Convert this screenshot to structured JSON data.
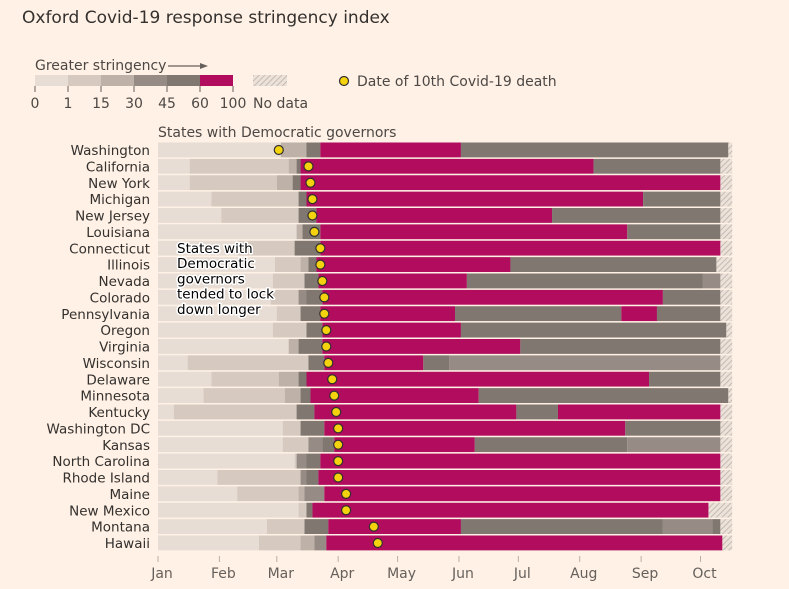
{
  "chart_data": {
    "type": "bar",
    "subtype": "timeline-heatmap",
    "title": "Oxford Covid-19 response stringency index",
    "group_label": "States with Democratic governors",
    "annotation": [
      "States with",
      "Democratic",
      "governors",
      "tended to lock",
      "down longer"
    ],
    "legend": {
      "scale_title": "Greater stringency",
      "breaks": [
        "0",
        "1",
        "15",
        "30",
        "45",
        "60",
        "100"
      ],
      "colors": [
        "#e7ddd4",
        "#d5c9c0",
        "#bdb1a8",
        "#968c85",
        "#7f7770",
        "#b10c5e"
      ],
      "no_data_label": "No data",
      "marker_label": "Date of 10th Covid-19 death",
      "marker_color": "#f5d20e"
    },
    "x_axis": {
      "unit": "day of 2020 (0 = Jan 1)",
      "range": [
        0,
        290
      ],
      "ticks": [
        {
          "label": "Jan",
          "day": 0
        },
        {
          "label": "Feb",
          "day": 31
        },
        {
          "label": "Mar",
          "day": 60
        },
        {
          "label": "Apr",
          "day": 91
        },
        {
          "label": "May",
          "day": 121
        },
        {
          "label": "Jun",
          "day": 152
        },
        {
          "label": "Jul",
          "day": 182
        },
        {
          "label": "Aug",
          "day": 213
        },
        {
          "label": "Sep",
          "day": 244
        },
        {
          "label": "Oct",
          "day": 274
        }
      ]
    },
    "segment_format": "[start_day, end_day, stringency_class 0-5]",
    "rows": [
      {
        "state": "Washington",
        "death": 61,
        "segments": [
          [
            0,
            62,
            0
          ],
          [
            62,
            75,
            2
          ],
          [
            75,
            82,
            4
          ],
          [
            82,
            153,
            5
          ],
          [
            153,
            288,
            4
          ]
        ]
      },
      {
        "state": "California",
        "death": 76,
        "segments": [
          [
            0,
            16,
            0
          ],
          [
            16,
            66,
            1
          ],
          [
            66,
            70,
            2
          ],
          [
            70,
            72,
            4
          ],
          [
            72,
            220,
            5
          ],
          [
            220,
            284,
            4
          ]
        ]
      },
      {
        "state": "New York",
        "death": 77,
        "segments": [
          [
            0,
            16,
            0
          ],
          [
            16,
            60,
            1
          ],
          [
            60,
            68,
            2
          ],
          [
            68,
            72,
            4
          ],
          [
            72,
            284,
            5
          ]
        ]
      },
      {
        "state": "Michigan",
        "death": 78,
        "segments": [
          [
            0,
            27,
            0
          ],
          [
            27,
            71,
            1
          ],
          [
            71,
            75,
            4
          ],
          [
            75,
            245,
            5
          ],
          [
            245,
            284,
            4
          ]
        ]
      },
      {
        "state": "New Jersey",
        "death": 78,
        "segments": [
          [
            0,
            32,
            0
          ],
          [
            32,
            71,
            1
          ],
          [
            71,
            80,
            4
          ],
          [
            80,
            199,
            5
          ],
          [
            199,
            284,
            4
          ]
        ]
      },
      {
        "state": "Louisiana",
        "death": 79,
        "segments": [
          [
            0,
            70,
            0
          ],
          [
            70,
            73,
            2
          ],
          [
            73,
            82,
            4
          ],
          [
            82,
            237,
            5
          ],
          [
            237,
            284,
            4
          ]
        ]
      },
      {
        "state": "Connecticut",
        "death": 82,
        "segments": [
          [
            0,
            40,
            0
          ],
          [
            40,
            69,
            1
          ],
          [
            69,
            82,
            4
          ],
          [
            82,
            284,
            5
          ]
        ]
      },
      {
        "state": "Illinois",
        "death": 82,
        "segments": [
          [
            0,
            59,
            0
          ],
          [
            59,
            72,
            1
          ],
          [
            72,
            76,
            2
          ],
          [
            76,
            80,
            4
          ],
          [
            80,
            178,
            5
          ],
          [
            178,
            282,
            4
          ]
        ]
      },
      {
        "state": "Nevada",
        "death": 83,
        "segments": [
          [
            0,
            58,
            0
          ],
          [
            58,
            74,
            1
          ],
          [
            74,
            81,
            4
          ],
          [
            81,
            156,
            5
          ],
          [
            156,
            275,
            4
          ],
          [
            275,
            284,
            3
          ]
        ]
      },
      {
        "state": "Colorado",
        "death": 84,
        "segments": [
          [
            0,
            57,
            0
          ],
          [
            57,
            71,
            1
          ],
          [
            71,
            75,
            3
          ],
          [
            75,
            83,
            4
          ],
          [
            83,
            255,
            5
          ],
          [
            255,
            284,
            4
          ]
        ]
      },
      {
        "state": "Pennsylvania",
        "death": 84,
        "segments": [
          [
            0,
            60,
            0
          ],
          [
            60,
            72,
            1
          ],
          [
            72,
            82,
            4
          ],
          [
            82,
            150,
            5
          ],
          [
            150,
            234,
            4
          ],
          [
            234,
            252,
            5
          ],
          [
            252,
            284,
            4
          ]
        ]
      },
      {
        "state": "Oregon",
        "death": 85,
        "segments": [
          [
            0,
            58,
            0
          ],
          [
            58,
            75,
            1
          ],
          [
            75,
            83,
            4
          ],
          [
            83,
            153,
            5
          ],
          [
            153,
            287,
            4
          ]
        ]
      },
      {
        "state": "Virginia",
        "death": 85,
        "segments": [
          [
            0,
            66,
            0
          ],
          [
            66,
            71,
            2
          ],
          [
            71,
            83,
            4
          ],
          [
            83,
            183,
            5
          ],
          [
            183,
            284,
            4
          ]
        ]
      },
      {
        "state": "Wisconsin",
        "death": 86,
        "segments": [
          [
            0,
            15,
            0
          ],
          [
            15,
            76,
            1
          ],
          [
            76,
            84,
            4
          ],
          [
            84,
            134,
            5
          ],
          [
            134,
            147,
            4
          ],
          [
            147,
            284,
            3
          ]
        ]
      },
      {
        "state": "Delaware",
        "death": 88,
        "segments": [
          [
            0,
            27,
            0
          ],
          [
            27,
            61,
            1
          ],
          [
            61,
            71,
            2
          ],
          [
            71,
            75,
            4
          ],
          [
            75,
            248,
            5
          ],
          [
            248,
            284,
            4
          ]
        ]
      },
      {
        "state": "Minnesota",
        "death": 89,
        "segments": [
          [
            0,
            23,
            0
          ],
          [
            23,
            64,
            1
          ],
          [
            64,
            72,
            2
          ],
          [
            72,
            77,
            4
          ],
          [
            77,
            162,
            5
          ],
          [
            162,
            288,
            4
          ]
        ]
      },
      {
        "state": "Kentucky",
        "death": 90,
        "segments": [
          [
            0,
            8,
            0
          ],
          [
            8,
            70,
            1
          ],
          [
            70,
            79,
            4
          ],
          [
            79,
            181,
            5
          ],
          [
            181,
            202,
            4
          ],
          [
            202,
            284,
            5
          ]
        ]
      },
      {
        "state": "Washington DC",
        "death": 91,
        "segments": [
          [
            0,
            63,
            0
          ],
          [
            63,
            72,
            1
          ],
          [
            72,
            84,
            4
          ],
          [
            84,
            236,
            5
          ],
          [
            236,
            284,
            4
          ]
        ]
      },
      {
        "state": "Kansas",
        "death": 91,
        "segments": [
          [
            0,
            63,
            0
          ],
          [
            63,
            76,
            1
          ],
          [
            76,
            83,
            3
          ],
          [
            83,
            89,
            4
          ],
          [
            89,
            160,
            5
          ],
          [
            160,
            237,
            4
          ],
          [
            237,
            284,
            3
          ]
        ]
      },
      {
        "state": "North Carolina",
        "death": 91,
        "segments": [
          [
            0,
            69,
            0
          ],
          [
            69,
            70,
            1
          ],
          [
            70,
            75,
            3
          ],
          [
            75,
            82,
            4
          ],
          [
            82,
            284,
            5
          ]
        ]
      },
      {
        "state": "Rhode Island",
        "death": 91,
        "segments": [
          [
            0,
            30,
            0
          ],
          [
            30,
            72,
            1
          ],
          [
            72,
            75,
            3
          ],
          [
            75,
            81,
            4
          ],
          [
            81,
            284,
            5
          ]
        ]
      },
      {
        "state": "Maine",
        "death": 95,
        "segments": [
          [
            0,
            40,
            0
          ],
          [
            40,
            71,
            1
          ],
          [
            71,
            74,
            2
          ],
          [
            74,
            84,
            3
          ],
          [
            84,
            284,
            5
          ]
        ]
      },
      {
        "state": "New Mexico",
        "death": 95,
        "segments": [
          [
            0,
            71,
            0
          ],
          [
            71,
            75,
            1
          ],
          [
            75,
            78,
            4
          ],
          [
            78,
            278,
            5
          ]
        ]
      },
      {
        "state": "Montana",
        "death": 109,
        "segments": [
          [
            0,
            55,
            0
          ],
          [
            55,
            74,
            1
          ],
          [
            74,
            86,
            4
          ],
          [
            86,
            153,
            5
          ],
          [
            153,
            255,
            4
          ],
          [
            255,
            280,
            3
          ],
          [
            280,
            284,
            4
          ]
        ]
      },
      {
        "state": "Hawaii",
        "death": 111,
        "segments": [
          [
            0,
            51,
            0
          ],
          [
            51,
            72,
            1
          ],
          [
            72,
            79,
            2
          ],
          [
            79,
            85,
            3
          ],
          [
            85,
            285,
            5
          ]
        ]
      }
    ]
  }
}
